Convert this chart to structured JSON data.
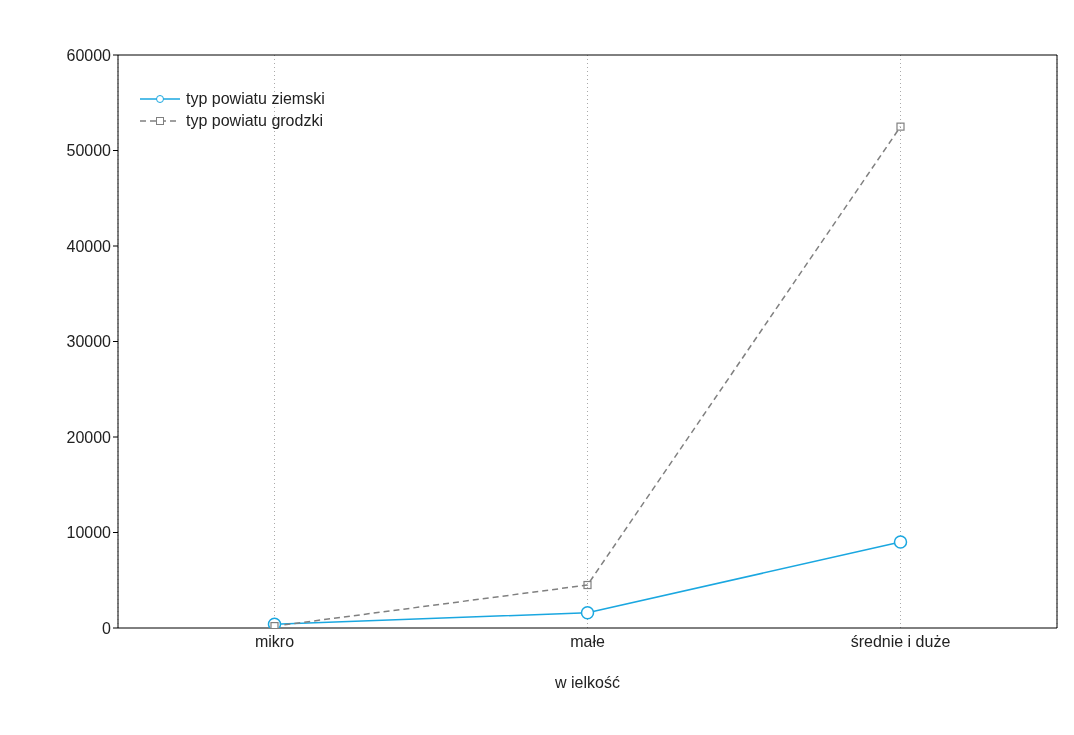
{
  "chart_data": {
    "type": "line",
    "xlabel": "w ielkość",
    "categories": [
      "mikro",
      "małe",
      "średnie i duże"
    ],
    "series": [
      {
        "name": "typ powiatu ziemski",
        "color": "#1aa7e0",
        "values": [
          400,
          1600,
          9000
        ],
        "marker": "circle",
        "line_style": "solid"
      },
      {
        "name": "typ powiatu grodzki",
        "color": "#808080",
        "values": [
          200,
          4500,
          52500
        ],
        "marker": "square",
        "line_style": "dashed"
      }
    ],
    "ylim": [
      0,
      60000
    ],
    "yticks": [
      0,
      10000,
      20000,
      30000,
      40000,
      50000,
      60000
    ],
    "grid": "x",
    "legend": "top left"
  }
}
